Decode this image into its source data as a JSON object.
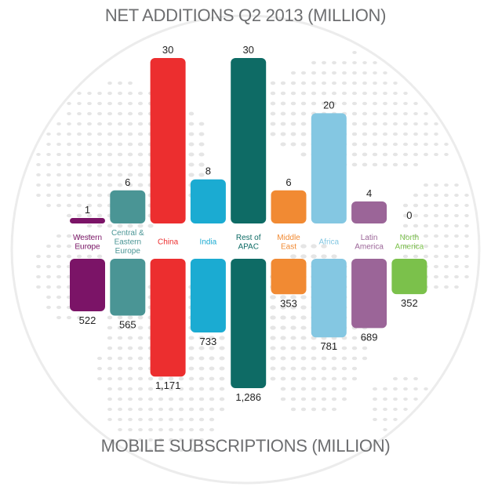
{
  "chart_data": {
    "type": "bar",
    "top_title": "NET ADDITIONS Q2 2013 (MILLION)",
    "bottom_title": "MOBILE SUBSCRIPTIONS (MILLION)",
    "categories": [
      {
        "lines": [
          "Western",
          "Europe"
        ],
        "color": "#7b1467"
      },
      {
        "lines": [
          "Central &",
          "Eastern",
          "Europe"
        ],
        "color": "#4a9595"
      },
      {
        "lines": [
          "China"
        ],
        "color": "#ec2e2f"
      },
      {
        "lines": [
          "India"
        ],
        "color": "#1babd2"
      },
      {
        "lines": [
          "Rest of",
          "APAC"
        ],
        "color": "#0e6b65"
      },
      {
        "lines": [
          "Middle",
          "East"
        ],
        "color": "#f18a33"
      },
      {
        "lines": [
          "Africa"
        ],
        "color": "#84c7e2"
      },
      {
        "lines": [
          "Latin",
          "America"
        ],
        "color": "#9b6598"
      },
      {
        "lines": [
          "North",
          "America"
        ],
        "color": "#7bc14b"
      }
    ],
    "label_colors": [
      "#7b1467",
      "#4a9595",
      "#ec2e2f",
      "#1babd2",
      "#0e6b65",
      "#f18a33",
      "#84c7e2",
      "#9b6598",
      "#7bc14b"
    ],
    "series": [
      {
        "name": "NET ADDITIONS Q2 2013 (MILLION)",
        "values": [
          1,
          6,
          30,
          8,
          30,
          6,
          20,
          4,
          0
        ],
        "labels": [
          "1",
          "6",
          "30",
          "8",
          "30",
          "6",
          "20",
          "4",
          "0"
        ]
      },
      {
        "name": "MOBILE SUBSCRIPTIONS (MILLION)",
        "values": [
          522,
          565,
          1171,
          733,
          1286,
          353,
          781,
          689,
          352
        ],
        "labels": [
          "522",
          "565",
          "1,171",
          "733",
          "1,286",
          "353",
          "781",
          "689",
          "352"
        ]
      }
    ],
    "value_label_color": "#222222",
    "globe_dot_color": "#e5e5e5"
  }
}
